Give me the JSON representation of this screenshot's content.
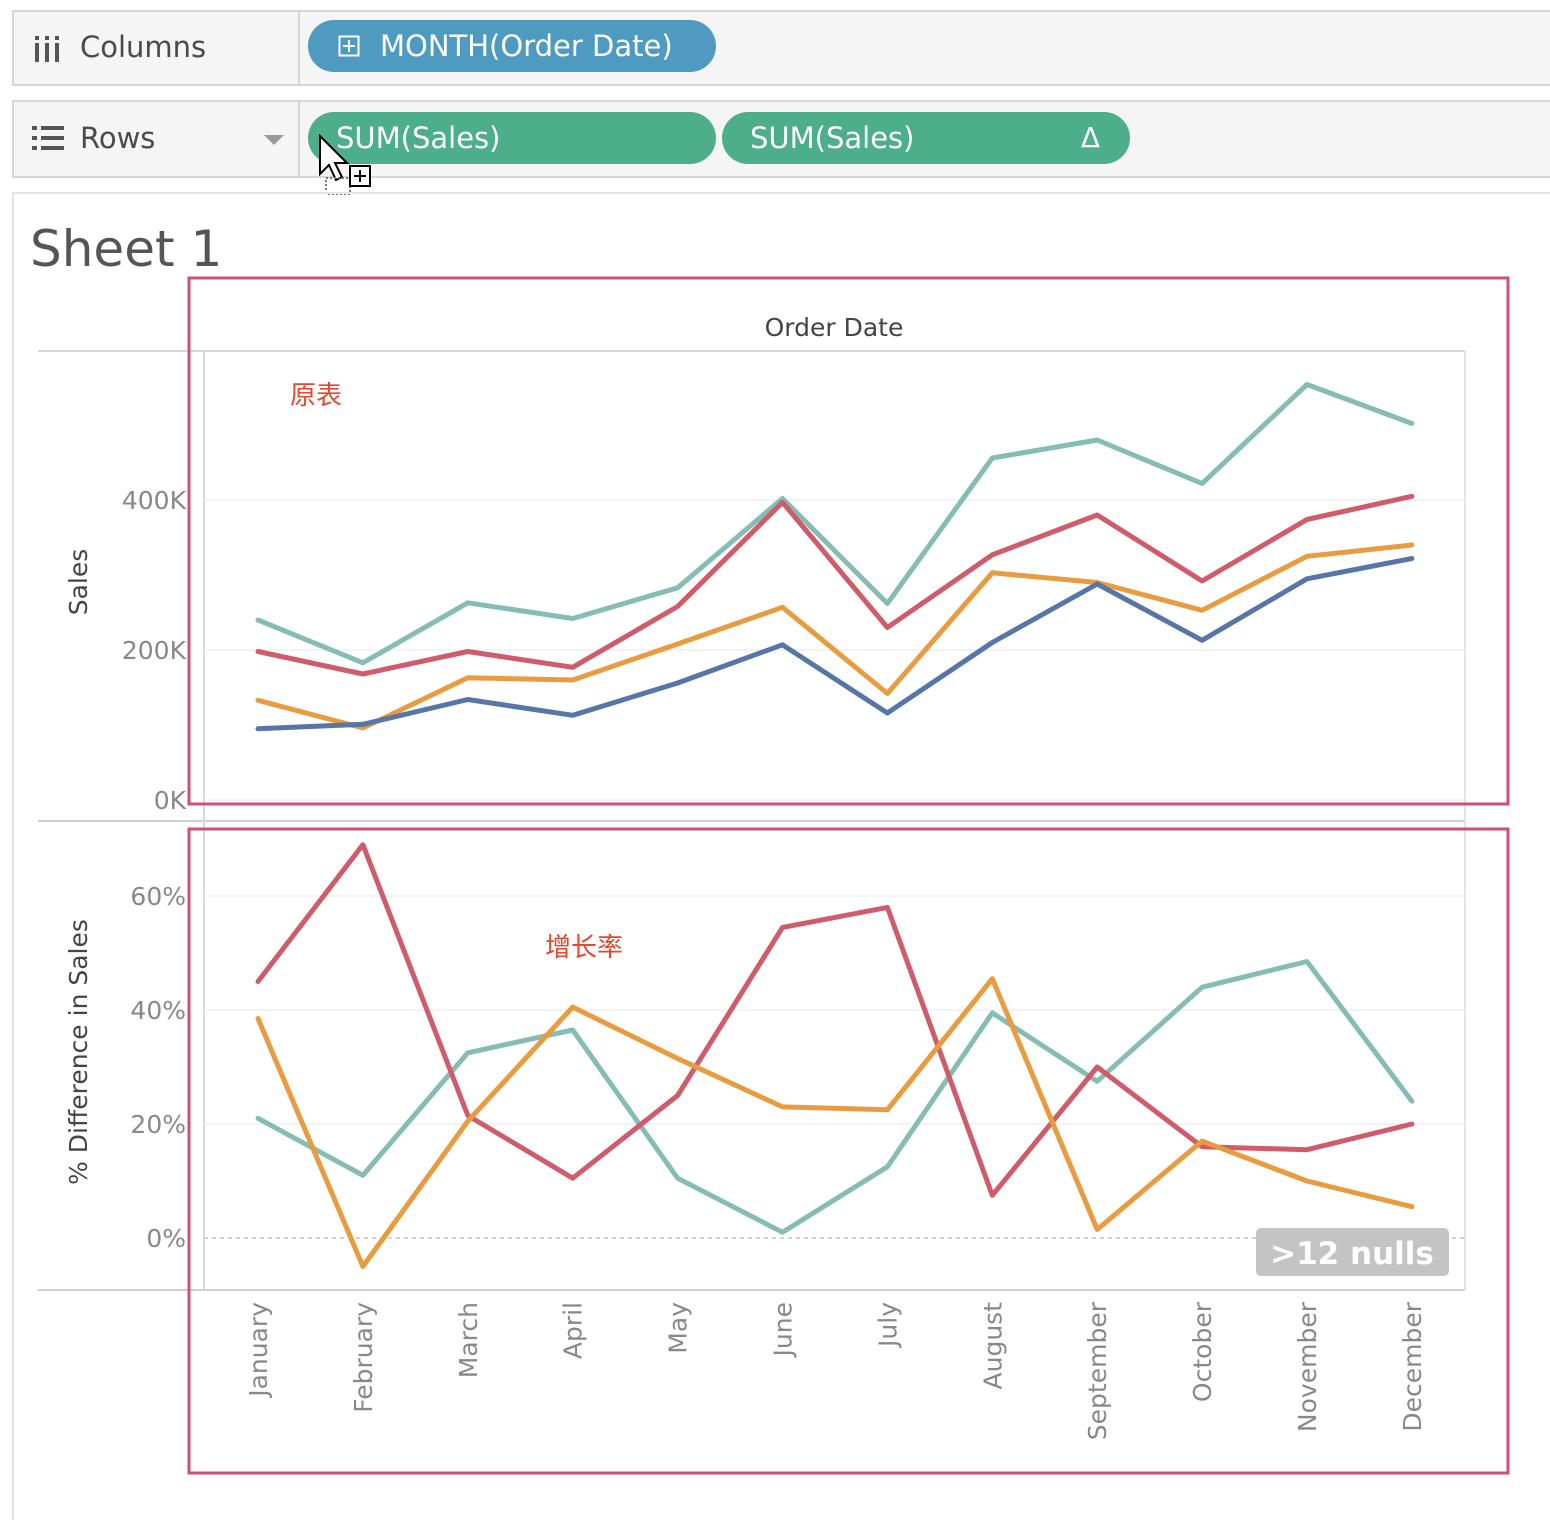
{
  "columns_shelf": {
    "label": "Columns",
    "pill": "MONTH(Order Date)"
  },
  "rows_shelf": {
    "label": "Rows",
    "pill1": "SUM(Sales)",
    "pill2": "SUM(Sales)",
    "pill2_marker": "Δ"
  },
  "sheet": {
    "title": "Sheet 1",
    "header": "Order Date"
  },
  "annotations": {
    "top": "原表",
    "bottom": "增长率"
  },
  "null_badge": ">12 nulls",
  "colors": {
    "teal": "#86bdb2",
    "red": "#d05b6a",
    "orange": "#e89b3f",
    "blue": "#5576a6",
    "annotation_box": "#cc4f7d",
    "annotation_text": "#e5472f"
  },
  "chart_data": [
    {
      "type": "line",
      "ylabel": "Sales",
      "ylim": [
        0,
        560000
      ],
      "yticks": [
        {
          "v": 0,
          "label": "0K"
        },
        {
          "v": 200000,
          "label": "200K"
        },
        {
          "v": 400000,
          "label": "400K"
        }
      ],
      "categories": [
        "January",
        "February",
        "March",
        "April",
        "May",
        "June",
        "July",
        "August",
        "September",
        "October",
        "November",
        "December"
      ],
      "series": [
        {
          "color": "teal",
          "values": [
            240000,
            183000,
            263000,
            242000,
            283000,
            402000,
            262000,
            456000,
            480000,
            422000,
            554000,
            502000
          ]
        },
        {
          "color": "red",
          "values": [
            198000,
            168000,
            198000,
            177000,
            258000,
            397000,
            230000,
            327000,
            380000,
            292000,
            374000,
            405000
          ]
        },
        {
          "color": "orange",
          "values": [
            133000,
            96000,
            163000,
            160000,
            208000,
            257000,
            142000,
            303000,
            290000,
            253000,
            325000,
            340000
          ]
        },
        {
          "color": "blue",
          "values": [
            95000,
            101000,
            134000,
            113000,
            156000,
            207000,
            116000,
            210000,
            288000,
            213000,
            295000,
            322000
          ]
        }
      ]
    },
    {
      "type": "line",
      "ylabel": "% Difference in Sales",
      "ylim": [
        -9,
        70
      ],
      "yticks": [
        {
          "v": 0,
          "label": "0%"
        },
        {
          "v": 20,
          "label": "20%"
        },
        {
          "v": 40,
          "label": "40%"
        },
        {
          "v": 60,
          "label": "60%"
        }
      ],
      "categories": [
        "January",
        "February",
        "March",
        "April",
        "May",
        "June",
        "July",
        "August",
        "September",
        "October",
        "November",
        "December"
      ],
      "series": [
        {
          "color": "teal",
          "values": [
            21,
            11,
            32.5,
            36.5,
            10.5,
            1,
            12.5,
            39.5,
            27.5,
            44,
            48.5,
            24
          ]
        },
        {
          "color": "red",
          "values": [
            45,
            69,
            21.5,
            10.5,
            25,
            54.5,
            58,
            7.5,
            30,
            16,
            15.5,
            20
          ]
        },
        {
          "color": "orange",
          "values": [
            38.5,
            -5,
            20.5,
            40.5,
            31.5,
            23,
            22.5,
            45.5,
            1.5,
            17,
            10,
            5.5
          ]
        }
      ]
    }
  ]
}
